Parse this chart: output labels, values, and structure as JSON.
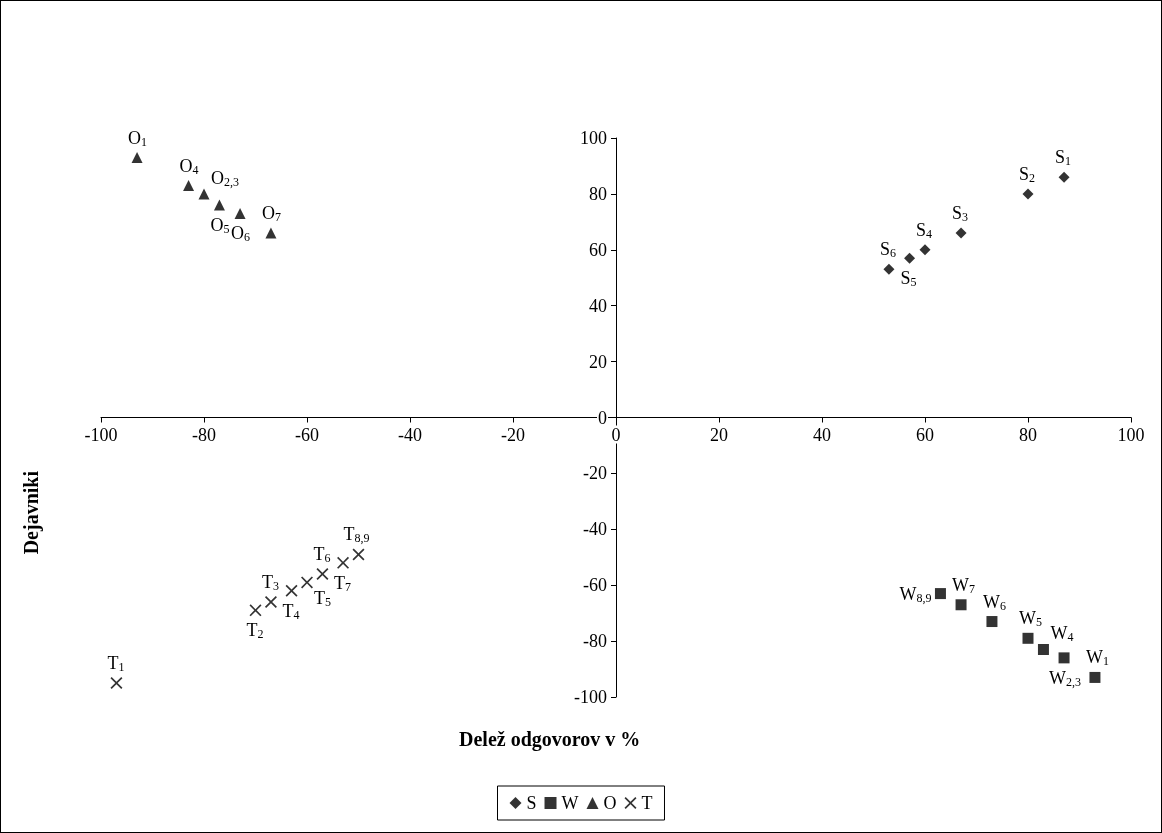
{
  "chart_data": {
    "type": "scatter",
    "xlabel": "Delež odgovorov v %",
    "ylabel": "Dejavniki",
    "xlim": [
      -100,
      100
    ],
    "xticks": [
      -100,
      -80,
      -60,
      -40,
      -20,
      0,
      20,
      40,
      60,
      80,
      100
    ],
    "ylim": [
      -100,
      100
    ],
    "yticks": [
      -100,
      -80,
      -60,
      -40,
      -20,
      0,
      20,
      40,
      60,
      80,
      100
    ],
    "legend": "bottom",
    "series": [
      {
        "name": "S",
        "color": "#000000",
        "marker": "diamond",
        "x": [
          87,
          80,
          67,
          60,
          57,
          53
        ],
        "values": [
          86,
          80,
          66,
          60,
          57,
          53
        ]
      },
      {
        "name": "W",
        "color": "#000000",
        "marker": "square",
        "x": [
          93,
          87,
          83,
          80,
          73,
          67,
          63
        ],
        "values": [
          -93,
          -86,
          -83,
          -79,
          -73,
          -67,
          -63
        ]
      },
      {
        "name": "O",
        "color": "#000000",
        "marker": "triangle",
        "x": [
          -93,
          -83,
          -80,
          -77,
          -73,
          -67
        ],
        "values": [
          93,
          83,
          80,
          76,
          73,
          66
        ]
      },
      {
        "name": "T",
        "color": "#000000",
        "marker": "cross",
        "x": [
          -97,
          -70,
          -67,
          -63,
          -60,
          -57,
          -53,
          -50
        ],
        "values": [
          -95,
          -69,
          -66,
          -62,
          -59,
          -56,
          -52,
          -49
        ]
      }
    ],
    "annotations": [
      {
        "text": "S$_{1}$",
        "x": 87,
        "y": 86
      },
      {
        "text": "S$_{2}$",
        "x": 80,
        "y": 80
      },
      {
        "text": "S$_{3}$",
        "x": 67,
        "y": 66
      },
      {
        "text": "S$_{4}$",
        "x": 60,
        "y": 60
      },
      {
        "text": "S$_{5}$",
        "x": 57,
        "y": 57
      },
      {
        "text": "S$_{6}$",
        "x": 53,
        "y": 53
      },
      {
        "text": "W$_{1}$",
        "x": 93,
        "y": -93
      },
      {
        "text": "W$_{2,3}$",
        "x": 87,
        "y": -86
      },
      {
        "text": "W$_{4}$",
        "x": 83,
        "y": -83
      },
      {
        "text": "W$_{5}$",
        "x": 80,
        "y": -79
      },
      {
        "text": "W$_{6}$",
        "x": 73,
        "y": -73
      },
      {
        "text": "W$_{7}$",
        "x": 67,
        "y": -67
      },
      {
        "text": "W$_{8,9}$",
        "x": 63,
        "y": -63
      },
      {
        "text": "O$_{1}$",
        "x": -93,
        "y": 93
      },
      {
        "text": "O$_{2,3}$",
        "x": -80,
        "y": 80
      },
      {
        "text": "O$_{4}$",
        "x": -83,
        "y": 83
      },
      {
        "text": "O$_{5}$",
        "x": -77,
        "y": 76
      },
      {
        "text": "O$_{6}$",
        "x": -73,
        "y": 73
      },
      {
        "text": "O$_{7}$",
        "x": -67,
        "y": 66
      },
      {
        "text": "T$_{1}$",
        "x": -97,
        "y": -95
      },
      {
        "text": "T$_{2}$",
        "x": -70,
        "y": -69
      },
      {
        "text": "T$_{3}$",
        "x": -67,
        "y": -66
      },
      {
        "text": "T$_{4}$",
        "x": -63,
        "y": -62
      },
      {
        "text": "T$_{5}$",
        "x": -60,
        "y": -59
      },
      {
        "text": "T$_{6}$",
        "x": -57,
        "y": -56
      },
      {
        "text": "T$_{7}$",
        "x": -53,
        "y": -52
      },
      {
        "text": "T$_{8,9}$",
        "x": -50,
        "y": -49
      }
    ]
  }
}
